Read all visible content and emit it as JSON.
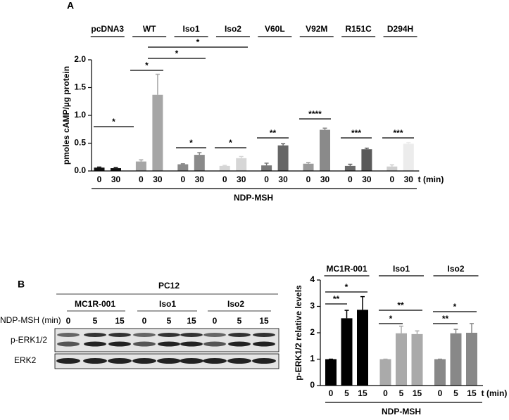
{
  "panel_labels": [
    "A",
    "B"
  ],
  "blot": {
    "title": "PC12",
    "groups": [
      "MC1R-001",
      "Iso1",
      "Iso2"
    ],
    "row_label": "NDP-MSH (min)",
    "times": [
      "0",
      "5",
      "15"
    ],
    "bands": [
      "p-ERK1/2",
      "ERK2"
    ]
  },
  "chart_data": [
    {
      "type": "bar",
      "y_label": "pmoles cAMP/µg protein",
      "x_label": "t (min)",
      "treatment_label": "NDP-MSH",
      "ylim": [
        0,
        2.0
      ],
      "yticks": [
        {
          "value": 0,
          "label": "0.0"
        },
        {
          "value": 0.5,
          "label": "0.5"
        },
        {
          "value": 1,
          "label": "1.0"
        },
        {
          "value": 1.5,
          "label": "1.5"
        },
        {
          "value": 2,
          "label": "2.0"
        }
      ],
      "groups": [
        {
          "name": "pcDNA3",
          "categories": [
            "0",
            "30"
          ],
          "values": [
            0.06,
            0.05
          ],
          "errors": [
            0.01,
            0.01
          ],
          "colors": [
            "#111111",
            "#111111"
          ]
        },
        {
          "name": "WT",
          "categories": [
            "0",
            "30"
          ],
          "values": [
            0.17,
            1.37
          ],
          "errors": [
            0.03,
            0.37
          ],
          "colors": [
            "#a6a6a6",
            "#a6a6a6"
          ]
        },
        {
          "name": "Iso1",
          "categories": [
            "0",
            "30"
          ],
          "values": [
            0.12,
            0.29
          ],
          "errors": [
            0.01,
            0.04
          ],
          "colors": [
            "#8a8a8a",
            "#8a8a8a"
          ]
        },
        {
          "name": "Iso2",
          "categories": [
            "0",
            "30"
          ],
          "values": [
            0.09,
            0.23
          ],
          "errors": [
            0.01,
            0.03
          ],
          "colors": [
            "#d6d6d6",
            "#d6d6d6"
          ]
        },
        {
          "name": "V60L",
          "categories": [
            "0",
            "30"
          ],
          "values": [
            0.1,
            0.46
          ],
          "errors": [
            0.04,
            0.03
          ],
          "colors": [
            "#777777",
            "#666666"
          ]
        },
        {
          "name": "V92M",
          "categories": [
            "0",
            "30"
          ],
          "values": [
            0.13,
            0.74
          ],
          "errors": [
            0.02,
            0.03
          ],
          "colors": [
            "#9a9a9a",
            "#8a8a8a"
          ]
        },
        {
          "name": "R151C",
          "categories": [
            "0",
            "30"
          ],
          "values": [
            0.09,
            0.39
          ],
          "errors": [
            0.03,
            0.02
          ],
          "colors": [
            "#6a6a6a",
            "#5a5a5a"
          ]
        },
        {
          "name": "D294H",
          "categories": [
            "0",
            "30"
          ],
          "values": [
            0.08,
            0.49
          ],
          "errors": [
            0.03,
            0.02
          ],
          "colors": [
            "#cfcfcf",
            "#ececec"
          ]
        }
      ],
      "significance": [
        "*",
        "*",
        "*",
        "*",
        "*",
        "*",
        "**",
        "****",
        "***",
        "***"
      ]
    },
    {
      "type": "bar",
      "y_label": "p-ERK1/2 relative levels",
      "x_label": "t (min)",
      "treatment_label": "NDP-MSH",
      "ylim": [
        0,
        4
      ],
      "yticks": [
        0,
        1,
        2,
        3,
        4
      ],
      "groups": [
        {
          "name": "MC1R-001",
          "categories": [
            "0",
            "5",
            "15"
          ],
          "values": [
            1,
            2.55,
            2.87
          ],
          "errors": [
            0,
            0.3,
            0.5
          ],
          "colors": [
            "#000000",
            "#000000",
            "#000000"
          ]
        },
        {
          "name": "Iso1",
          "categories": [
            "0",
            "5",
            "15"
          ],
          "values": [
            1,
            1.98,
            1.95
          ],
          "errors": [
            0,
            0.27,
            0.12
          ],
          "colors": [
            "#aaaaaa",
            "#aaaaaa",
            "#aaaaaa"
          ]
        },
        {
          "name": "Iso2",
          "categories": [
            "0",
            "5",
            "15"
          ],
          "values": [
            1,
            1.98,
            2.0
          ],
          "errors": [
            0,
            0.15,
            0.35
          ],
          "colors": [
            "#888888",
            "#888888",
            "#888888"
          ]
        }
      ],
      "significance": [
        "*",
        "**",
        "**",
        "*",
        "*",
        "**"
      ]
    }
  ]
}
